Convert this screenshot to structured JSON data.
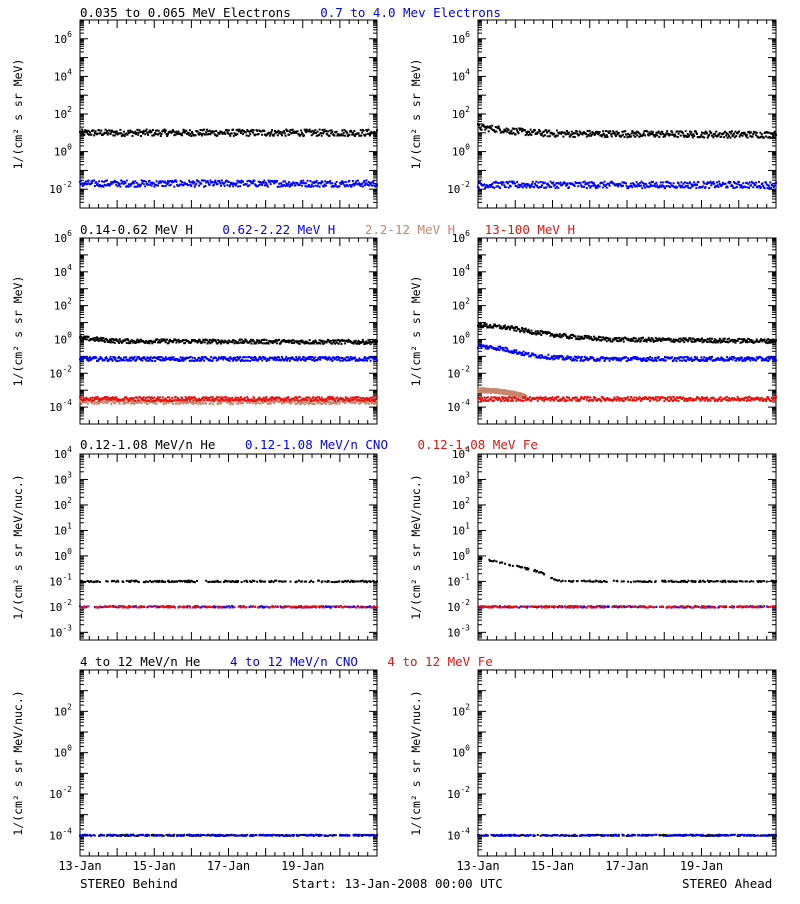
{
  "footer": {
    "left": "STEREO Behind",
    "center": "Start: 13-Jan-2008 00:00 UTC",
    "right": "STEREO Ahead"
  },
  "colors": {
    "black": "#000000",
    "blue": "#0000ff",
    "tan": "#c8866e",
    "red": "#e8120f"
  },
  "rows": [
    {
      "titles": [
        {
          "text": "0.035 to 0.065 MeV Electrons",
          "color": "#000000"
        },
        {
          "text": "0.7 to 4.0 Mev Electrons",
          "color": "#0000ff"
        }
      ]
    },
    {
      "titles": [
        {
          "text": "0.14-0.62 MeV H",
          "color": "#000000"
        },
        {
          "text": "0.62-2.22 MeV H",
          "color": "#0000ff"
        },
        {
          "text": "2.2-12 MeV H",
          "color": "#c8866e"
        },
        {
          "text": "13-100 MeV H",
          "color": "#e8120f"
        }
      ]
    },
    {
      "titles": [
        {
          "text": "0.12-1.08 MeV/n He",
          "color": "#000000"
        },
        {
          "text": "0.12-1.08 MeV/n CNO",
          "color": "#0000ff"
        },
        {
          "text": "0.12-1.08 MeV Fe",
          "color": "#e8120f"
        }
      ]
    },
    {
      "titles": [
        {
          "text": "4 to 12 MeV/n He",
          "color": "#000000"
        },
        {
          "text": "4 to 12 MeV/n CNO",
          "color": "#0000ff"
        },
        {
          "text": "4 to 12 MeV Fe",
          "color": "#e8120f"
        }
      ]
    }
  ],
  "chart_data": [
    {
      "panel": "row1-left",
      "spacecraft": "STEREO Behind",
      "type": "scatter",
      "ylabel": "1/(cm² s sr MeV)",
      "yscale": "log",
      "ylim_exp": [
        -3,
        7
      ],
      "yticks": [
        "10^-2",
        "10^0",
        "10^2",
        "10^4",
        "10^6"
      ],
      "xlim_day": [
        13,
        21
      ],
      "series": [
        {
          "name": "0.035 to 0.065 MeV Electrons",
          "color": "#000000",
          "x_day": [
            13,
            21
          ],
          "y": [
            10,
            10
          ]
        },
        {
          "name": "0.7 to 4.0 Mev Electrons",
          "color": "#0000ff",
          "x_day": [
            13,
            21
          ],
          "y": [
            0.02,
            0.02
          ]
        }
      ]
    },
    {
      "panel": "row1-right",
      "spacecraft": "STEREO Ahead",
      "type": "scatter",
      "ylabel": "1/(cm² s sr MeV)",
      "yscale": "log",
      "ylim_exp": [
        -3,
        7
      ],
      "yticks": [
        "10^-2",
        "10^0",
        "10^2",
        "10^4",
        "10^6"
      ],
      "xlim_day": [
        13,
        21
      ],
      "series": [
        {
          "name": "0.035 to 0.065 MeV Electrons",
          "color": "#000000",
          "x_day": [
            13,
            13.5,
            14,
            14.5,
            15,
            21
          ],
          "y": [
            20,
            16,
            12,
            10,
            9,
            8
          ]
        },
        {
          "name": "0.7 to 4.0 Mev Electrons",
          "color": "#0000ff",
          "x_day": [
            13,
            21
          ],
          "y": [
            0.017,
            0.017
          ]
        }
      ]
    },
    {
      "panel": "row2-left",
      "spacecraft": "STEREO Behind",
      "type": "scatter",
      "ylabel": "1/(cm² s sr MeV)",
      "yscale": "log",
      "ylim_exp": [
        -5,
        6
      ],
      "yticks": [
        "10^-4",
        "10^-2",
        "10^0",
        "10^2",
        "10^4",
        "10^6"
      ],
      "xlim_day": [
        13,
        21
      ],
      "series": [
        {
          "name": "0.14-0.62 MeV H",
          "color": "#000000",
          "x_day": [
            13,
            13.5,
            14,
            21
          ],
          "y": [
            1.2,
            1.0,
            0.8,
            0.7
          ]
        },
        {
          "name": "0.62-2.22 MeV H",
          "color": "#0000ff",
          "x_day": [
            13,
            21
          ],
          "y": [
            0.07,
            0.07
          ]
        },
        {
          "name": "2.2-12 MeV H",
          "color": "#c8866e",
          "x_day": [
            13,
            21
          ],
          "y": [
            0.0002,
            0.0002
          ]
        },
        {
          "name": "13-100 MeV H",
          "color": "#e8120f",
          "x_day": [
            13,
            21
          ],
          "y": [
            0.0003,
            0.0003
          ]
        }
      ]
    },
    {
      "panel": "row2-right",
      "spacecraft": "STEREO Ahead",
      "type": "scatter",
      "ylabel": "1/(cm² s sr MeV)",
      "yscale": "log",
      "ylim_exp": [
        -5,
        6
      ],
      "yticks": [
        "10^-4",
        "10^-2",
        "10^0",
        "10^2",
        "10^4",
        "10^6"
      ],
      "xlim_day": [
        13,
        21
      ],
      "series": [
        {
          "name": "0.14-0.62 MeV H",
          "color": "#000000",
          "x_day": [
            13,
            13.8,
            14.6,
            15.4,
            16.5,
            21
          ],
          "y": [
            7,
            5,
            2.5,
            1.5,
            1.0,
            0.8
          ]
        },
        {
          "name": "0.62-2.22 MeV H",
          "color": "#0000ff",
          "x_day": [
            13,
            13.6,
            14.4,
            15.2,
            16,
            21
          ],
          "y": [
            0.4,
            0.3,
            0.12,
            0.08,
            0.07,
            0.07
          ]
        },
        {
          "name": "2.2-12 MeV H",
          "color": "#c8866e",
          "x_day": [
            13,
            13.5,
            14,
            14.3
          ],
          "y": [
            0.001,
            0.0009,
            0.0006,
            0.0004
          ]
        },
        {
          "name": "13-100 MeV H",
          "color": "#e8120f",
          "x_day": [
            13,
            21
          ],
          "y": [
            0.0003,
            0.0003
          ]
        }
      ]
    },
    {
      "panel": "row3-left",
      "spacecraft": "STEREO Behind",
      "type": "scatter",
      "ylabel": "1/(cm² s sr MeV/nuc.)",
      "yscale": "log",
      "ylim_exp": [
        -3.3,
        4
      ],
      "yticks": [
        "10^-3",
        "10^-2",
        "10^-1",
        "10^0",
        "10^1",
        "10^2",
        "10^3",
        "10^4"
      ],
      "xlim_day": [
        13,
        21
      ],
      "series": [
        {
          "name": "0.12-1.08 MeV/n He",
          "color": "#000000",
          "x_day": [
            13,
            21
          ],
          "y": [
            0.1,
            0.1
          ]
        },
        {
          "name": "0.12-1.08 MeV/n CNO",
          "color": "#0000ff",
          "x_day": [
            13,
            21
          ],
          "y": [
            0.01,
            0.01
          ]
        },
        {
          "name": "0.12-1.08 MeV Fe",
          "color": "#e8120f",
          "x_day": [
            13,
            21
          ],
          "y": [
            0.01,
            0.01
          ]
        }
      ]
    },
    {
      "panel": "row3-right",
      "spacecraft": "STEREO Ahead",
      "type": "scatter",
      "ylabel": "1/(cm² s sr MeV/nuc.)",
      "yscale": "log",
      "ylim_exp": [
        -3.3,
        4
      ],
      "yticks": [
        "10^-3",
        "10^-2",
        "10^-1",
        "10^0",
        "10^1",
        "10^2",
        "10^3",
        "10^4"
      ],
      "xlim_day": [
        13,
        21
      ],
      "series": [
        {
          "name": "0.12-1.08 MeV/n He",
          "color": "#000000",
          "x_day": [
            13,
            13.5,
            14,
            14.6,
            15.2,
            21
          ],
          "y": [
            0.8,
            0.6,
            0.4,
            0.25,
            0.1,
            0.1
          ]
        },
        {
          "name": "0.12-1.08 MeV/n CNO",
          "color": "#0000ff",
          "x_day": [
            13,
            21
          ],
          "y": [
            0.01,
            0.01
          ]
        },
        {
          "name": "0.12-1.08 MeV Fe",
          "color": "#e8120f",
          "x_day": [
            13,
            21
          ],
          "y": [
            0.01,
            0.01
          ]
        }
      ]
    },
    {
      "panel": "row4-left",
      "spacecraft": "STEREO Behind",
      "type": "scatter",
      "ylabel": "1/(cm² s sr MeV/nuc.)",
      "yscale": "log",
      "ylim_exp": [
        -5,
        4
      ],
      "yticks": [
        "10^-4",
        "10^-2",
        "10^0",
        "10^2"
      ],
      "xlim_day": [
        13,
        21
      ],
      "xticks": [
        "13-Jan",
        "15-Jan",
        "17-Jan",
        "19-Jan"
      ],
      "series": [
        {
          "name": "4 to 12 MeV/n He",
          "color": "#000000",
          "x_day": [
            13,
            21
          ],
          "y": [
            0.0001,
            0.0001
          ]
        },
        {
          "name": "4 to 12 MeV/n CNO",
          "color": "#0000ff",
          "x_day": [
            13,
            21
          ],
          "y": [
            0.0001,
            0.0001
          ]
        }
      ]
    },
    {
      "panel": "row4-right",
      "spacecraft": "STEREO Ahead",
      "type": "scatter",
      "ylabel": "1/(cm² s sr MeV/nuc.)",
      "yscale": "log",
      "ylim_exp": [
        -5,
        4
      ],
      "yticks": [
        "10^-4",
        "10^-2",
        "10^0",
        "10^2"
      ],
      "xlim_day": [
        13,
        21
      ],
      "xticks": [
        "13-Jan",
        "15-Jan",
        "17-Jan",
        "19-Jan"
      ],
      "series": [
        {
          "name": "4 to 12 MeV/n He",
          "color": "#000000",
          "x_day": [
            13,
            21
          ],
          "y": [
            0.0001,
            0.0001
          ]
        },
        {
          "name": "4 to 12 MeV/n CNO",
          "color": "#0000ff",
          "x_day": [
            13,
            21
          ],
          "y": [
            0.0001,
            0.0001
          ]
        }
      ]
    }
  ]
}
